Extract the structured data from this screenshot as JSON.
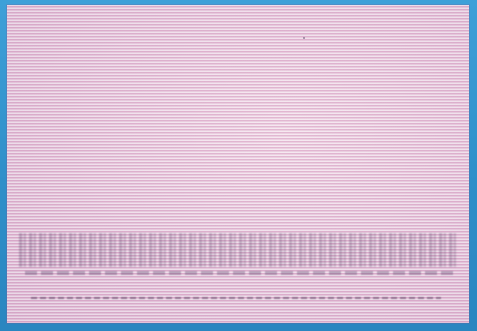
{
  "card": {
    "heading": "",
    "subline": "",
    "footer": ""
  },
  "colors": {
    "frame": "#2f8fc9",
    "card": "#e7c6d9",
    "rule_line": "#d696be",
    "ink": "#3c2850"
  }
}
